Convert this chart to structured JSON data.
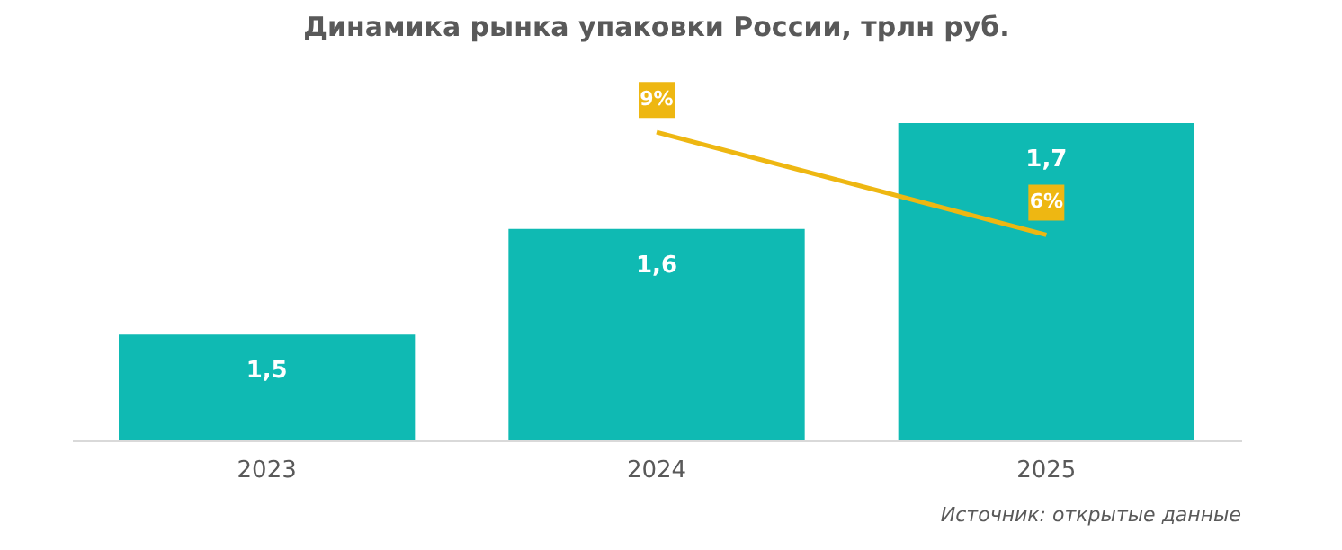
{
  "chart_data": {
    "type": "bar",
    "title": "Динамика рынка упаковки России, трлн руб.",
    "categories": [
      "2023",
      "2024",
      "2025"
    ],
    "series": [
      {
        "color": "#0fbab3",
        "values": [
          1.5,
          1.6,
          1.7
        ],
        "value_labels": [
          "1,5",
          "1,6",
          "1,7"
        ]
      },
      {
        "type": "line",
        "axis": "y2",
        "color": "#eeb712",
        "values": [
          null,
          9,
          6
        ],
        "value_labels": [
          null,
          "9%",
          "6%"
        ]
      }
    ],
    "ylim": [
      1.4,
      1.74
    ],
    "y2lim": [
      0,
      10.5
    ],
    "tick_labels": "x",
    "grid": false,
    "marker": "none",
    "line_style": "solid",
    "annotations": [
      "Источник: открытые данные"
    ]
  }
}
